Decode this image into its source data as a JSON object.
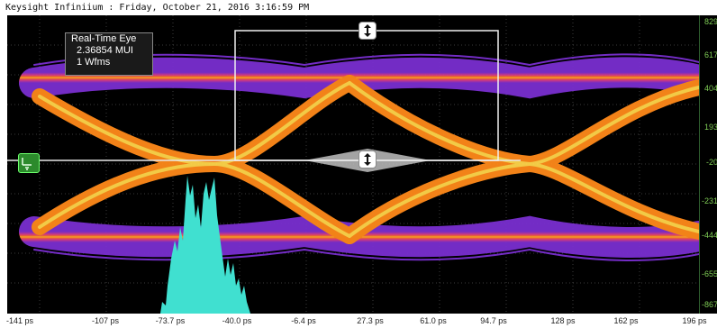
{
  "window": {
    "title": "Keysight Infiniium : Friday, October 21, 2016 3:16:59 PM"
  },
  "measurement_box": {
    "title": "Real-Time Eye",
    "ui_value": "2.36854 MUI",
    "waveforms": "1 Wfms"
  },
  "axes": {
    "y_ticks": [
      "829",
      "617",
      "404",
      "193",
      "-20",
      "-231",
      "-444",
      "-655",
      "-867"
    ],
    "x_ticks": [
      "-141 ps",
      "-107 ps",
      "-73.7 ps",
      "-40.0 ps",
      "-6.4 ps",
      "27.3 ps",
      "61.0 ps",
      "94.7 ps",
      "128 ps",
      "162 ps",
      "196 ps"
    ]
  },
  "colors": {
    "background": "#000000",
    "grid": "#3a3a3a",
    "axis_text_y": "#7fcc55",
    "eye_hot": "#ffd54a",
    "eye_mid": "#ff7a1a",
    "eye_cool": "#d63a8c",
    "eye_edge": "#7a2fd0",
    "histogram": "#40e0d0"
  }
}
